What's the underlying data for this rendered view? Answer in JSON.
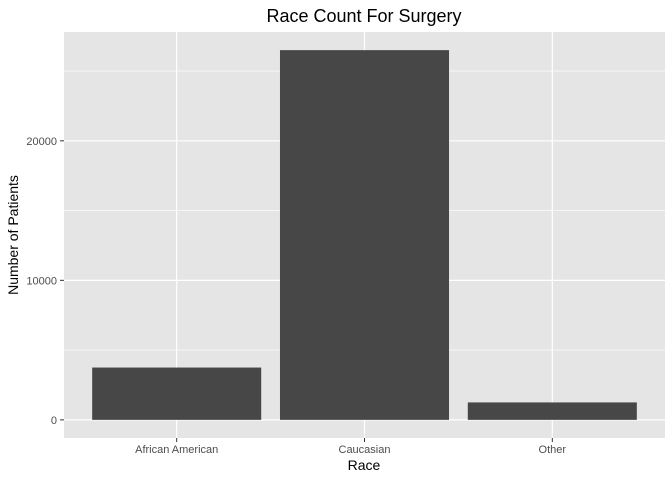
{
  "chart_data": {
    "type": "bar",
    "title": "Race Count For Surgery",
    "xlabel": "Race",
    "ylabel": "Number of Patients",
    "categories": [
      "African American",
      "Caucasian",
      "Other"
    ],
    "values": [
      3750,
      26500,
      1250
    ],
    "ylim": [
      -1300,
      27800
    ],
    "yticks": [
      0,
      10000,
      20000
    ],
    "ytick_labels": [
      "0",
      "10000",
      "20000"
    ],
    "grid": true,
    "legend": "none",
    "colors": {
      "bar": "#474747",
      "panel": "#e5e5e5",
      "grid": "#ffffff",
      "tick_text": "#4d4d4d"
    }
  }
}
